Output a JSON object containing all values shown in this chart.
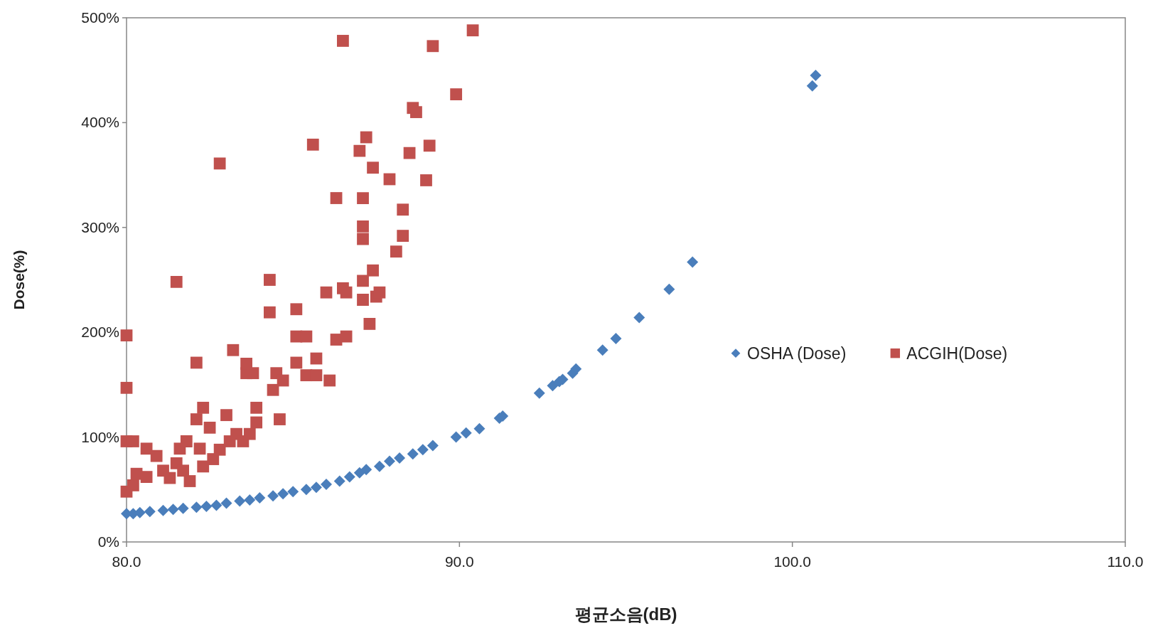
{
  "chart_data": {
    "type": "scatter",
    "xlabel": "평균소음(dB)",
    "ylabel": "Dose(%)",
    "xlim": [
      80,
      110
    ],
    "ylim": [
      0,
      500
    ],
    "xticks": [
      {
        "value": 80,
        "label": "80.0"
      },
      {
        "value": 90,
        "label": "90.0"
      },
      {
        "value": 100,
        "label": "100.0"
      },
      {
        "value": 110,
        "label": "110.0"
      }
    ],
    "yticks": [
      {
        "value": 0,
        "label": "0%"
      },
      {
        "value": 100,
        "label": "100%"
      },
      {
        "value": 200,
        "label": "200%"
      },
      {
        "value": 300,
        "label": "300%"
      },
      {
        "value": 400,
        "label": "400%"
      },
      {
        "value": 500,
        "label": "500%"
      }
    ],
    "grid": false,
    "legend": "right",
    "series": [
      {
        "name": "OSHA (Dose)",
        "color": "#4a7ebb",
        "marker": "diamond",
        "x": [
          80.0,
          80.2,
          80.4,
          80.7,
          81.1,
          81.4,
          81.7,
          82.1,
          82.4,
          82.7,
          83.0,
          83.4,
          83.7,
          84.0,
          84.4,
          84.7,
          85.0,
          85.4,
          85.7,
          86.0,
          86.4,
          86.7,
          87.0,
          87.2,
          87.6,
          87.9,
          88.2,
          88.6,
          88.9,
          89.2,
          89.9,
          90.2,
          90.6,
          91.2,
          91.3,
          92.4,
          92.8,
          93.0,
          93.1,
          93.4,
          93.5,
          94.3,
          94.7,
          95.4,
          96.3,
          97.0,
          100.6,
          100.7
        ],
        "values": [
          27,
          27,
          28,
          29,
          30,
          31,
          32,
          33,
          34,
          35,
          37,
          39,
          40,
          42,
          44,
          46,
          48,
          50,
          52,
          55,
          58,
          62,
          66,
          69,
          72,
          77,
          80,
          84,
          88,
          92,
          100,
          104,
          108,
          118,
          120,
          142,
          149,
          153,
          155,
          161,
          165,
          183,
          194,
          214,
          241,
          267,
          435,
          445
        ]
      },
      {
        "name": "ACGIH(Dose)",
        "color": "#c0504d",
        "marker": "square",
        "x": [
          80.0,
          80.0,
          80.0,
          80.2,
          80.0,
          80.2,
          80.3,
          80.6,
          80.6,
          80.9,
          81.1,
          81.3,
          81.5,
          81.5,
          81.6,
          81.7,
          81.8,
          81.9,
          82.1,
          82.1,
          82.2,
          82.3,
          82.3,
          82.5,
          82.6,
          82.8,
          82.8,
          83.0,
          83.1,
          83.2,
          83.3,
          83.5,
          83.6,
          83.6,
          83.7,
          83.8,
          83.9,
          83.9,
          84.3,
          84.3,
          84.4,
          84.5,
          84.6,
          84.7,
          85.1,
          85.1,
          85.1,
          85.4,
          85.4,
          85.6,
          85.7,
          85.7,
          86.0,
          86.1,
          86.3,
          86.3,
          86.5,
          86.5,
          86.6,
          86.6,
          87.0,
          87.1,
          87.1,
          87.1,
          87.1,
          87.1,
          87.2,
          87.3,
          87.4,
          87.4,
          87.5,
          87.6,
          87.9,
          88.1,
          88.3,
          88.3,
          88.5,
          88.6,
          88.7,
          89.0,
          89.1,
          89.2,
          89.9,
          90.4
        ],
        "values": [
          197,
          147,
          96,
          96,
          48,
          54,
          65,
          89,
          62,
          82,
          68,
          61,
          248,
          75,
          89,
          68,
          96,
          58,
          171,
          117,
          89,
          128,
          72,
          109,
          79,
          361,
          88,
          121,
          96,
          183,
          103,
          96,
          161,
          170,
          103,
          161,
          114,
          128,
          250,
          219,
          145,
          161,
          117,
          154,
          222,
          171,
          196,
          196,
          159,
          379,
          159,
          175,
          238,
          154,
          328,
          193,
          478,
          242,
          238,
          196,
          373,
          328,
          301,
          289,
          249,
          231,
          386,
          208,
          357,
          259,
          234,
          238,
          346,
          277,
          292,
          317,
          371,
          414,
          410,
          345,
          378,
          473,
          427,
          488
        ]
      }
    ]
  }
}
